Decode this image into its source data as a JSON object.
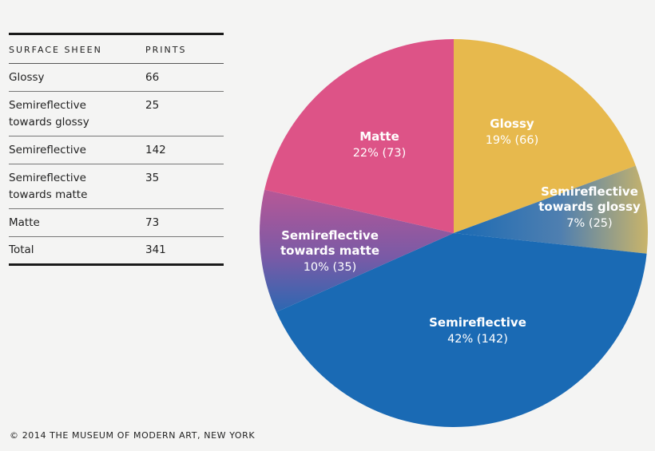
{
  "table": {
    "header": [
      "SURFACE SHEEN",
      "PRINTS"
    ],
    "rows": [
      {
        "label": "Glossy",
        "value": "66"
      },
      {
        "label": "Semireflective towards glossy",
        "value": "25"
      },
      {
        "label": "Semireflective",
        "value": "142"
      },
      {
        "label": "Semireflective towards matte",
        "value": "35"
      },
      {
        "label": "Matte",
        "value": "73"
      }
    ],
    "total": {
      "label": "Total",
      "value": "341"
    }
  },
  "footer": "© 2014 THE MUSEUM OF MODERN ART, NEW YORK",
  "chart_data": {
    "type": "pie",
    "slices": [
      {
        "name": "Glossy",
        "value": 66,
        "percent_label": "19% (66)",
        "color": "#e7b94d"
      },
      {
        "name": "Semireflective towards glossy",
        "value": 25,
        "percent_label": "7% (25)",
        "color": "#1a6ab4"
      },
      {
        "name": "Semireflective",
        "value": 142,
        "percent_label": "42% (142)",
        "color": "#1a6ab4"
      },
      {
        "name": "Semireflective towards matte",
        "value": 35,
        "percent_label": "10% (35)",
        "color": "#7a5aa6"
      },
      {
        "name": "Matte",
        "value": 73,
        "percent_label": "22% (73)",
        "color": "#dd5387"
      }
    ],
    "total": 341,
    "start": "12 o'clock, clockwise"
  }
}
